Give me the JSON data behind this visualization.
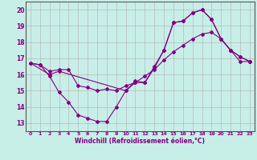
{
  "xlabel": "Windchill (Refroidissement éolien,°C)",
  "bg_color": "#c8eee8",
  "line_color": "#800080",
  "grid_color": "#b0b0b0",
  "xlim": [
    -0.5,
    23.5
  ],
  "ylim": [
    12.5,
    20.5
  ],
  "yticks": [
    13,
    14,
    15,
    16,
    17,
    18,
    19,
    20
  ],
  "xticks": [
    0,
    1,
    2,
    3,
    4,
    5,
    6,
    7,
    8,
    9,
    10,
    11,
    12,
    13,
    14,
    15,
    16,
    17,
    18,
    19,
    20,
    21,
    22,
    23
  ],
  "line1_x": [
    0,
    1,
    2,
    3,
    4,
    5,
    6,
    7,
    8,
    9,
    10,
    11,
    12,
    13,
    14,
    15,
    16,
    17,
    18,
    19,
    20,
    21,
    22,
    23
  ],
  "line1_y": [
    16.7,
    16.6,
    15.9,
    14.9,
    14.3,
    13.5,
    13.3,
    13.1,
    13.1,
    14.0,
    15.0,
    15.5,
    15.5,
    16.4,
    17.5,
    19.2,
    19.3,
    19.8,
    20.0,
    19.4,
    18.2,
    17.5,
    17.1,
    16.8
  ],
  "line2_x": [
    0,
    1,
    2,
    3,
    4,
    5,
    6,
    7,
    8,
    9,
    10,
    11,
    12,
    13,
    14,
    15,
    16,
    17,
    18,
    19,
    20,
    21,
    22,
    23
  ],
  "line2_y": [
    16.7,
    16.6,
    16.2,
    16.3,
    16.3,
    15.3,
    15.2,
    15.0,
    15.1,
    15.0,
    15.3,
    15.5,
    15.9,
    16.3,
    16.9,
    17.4,
    17.8,
    18.2,
    18.5,
    18.6,
    18.2,
    17.5,
    16.8,
    16.8
  ],
  "line3_x": [
    0,
    2,
    3,
    10,
    11,
    12,
    13,
    14,
    15,
    16,
    17,
    18,
    19,
    20,
    21,
    22,
    23
  ],
  "line3_y": [
    16.7,
    16.0,
    16.2,
    15.0,
    15.6,
    15.5,
    16.5,
    17.5,
    19.2,
    19.3,
    19.8,
    20.0,
    19.4,
    18.2,
    17.5,
    17.1,
    16.8
  ]
}
